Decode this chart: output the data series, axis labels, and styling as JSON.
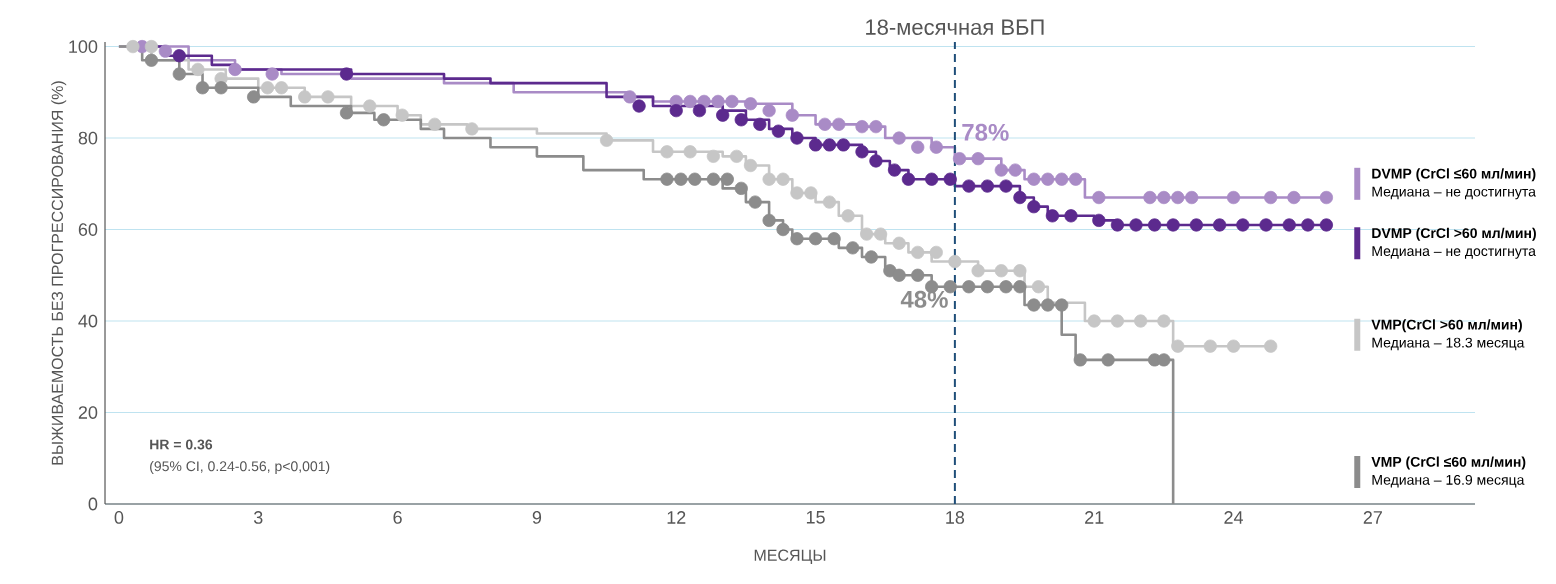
{
  "chart_data": {
    "type": "step",
    "xlabel": "МЕСЯЦЫ",
    "ylabel": "ВЫЖИВАЕМОСТЬ БЕЗ ПРОГРЕССИРОВАНИЯ (%)",
    "xlim": [
      -0.3,
      29.2
    ],
    "ylim": [
      0,
      101
    ],
    "xticks": [
      0,
      3,
      6,
      9,
      12,
      15,
      18,
      21,
      24,
      27
    ],
    "yticks": [
      0,
      20,
      40,
      60,
      80,
      100
    ],
    "grid": "y",
    "legend": "right",
    "series": [
      {
        "name": "DVMP (CrCl ≤60 мл/мин)",
        "color": "#a98bc6",
        "x": [
          0,
          1.5,
          2.5,
          3.5,
          5,
          7,
          8.5,
          11,
          11.5,
          13.5,
          14.5,
          15,
          16,
          16.5,
          17.5,
          18,
          19,
          19.5,
          20.8,
          26
        ],
        "values": [
          100,
          97,
          95,
          94,
          93,
          92,
          90,
          89,
          88,
          87.5,
          85,
          83,
          82.5,
          80,
          78,
          75.5,
          73,
          71,
          67,
          67
        ]
      },
      {
        "name": "DVMP (CrCl >60 мл/мин)",
        "color": "#5c2a8e",
        "x": [
          0,
          1,
          2,
          2.5,
          5,
          7,
          8,
          10.5,
          11.5,
          13,
          13.5,
          14,
          14.5,
          15,
          16,
          16.3,
          16.6,
          17,
          18,
          19.4,
          19.7,
          20,
          21,
          21.5,
          26
        ],
        "values": [
          100,
          98,
          96,
          95,
          94,
          93,
          92,
          89,
          87,
          86,
          84,
          82,
          80,
          78.5,
          77,
          75,
          73,
          71,
          69.5,
          67,
          65,
          63,
          62,
          61,
          61
        ]
      },
      {
        "name": "VMP(CrCl >60 мл/мин)",
        "color": "#c6c6c6",
        "x": [
          0,
          0.7,
          1.5,
          2.3,
          3,
          4,
          5,
          6,
          6.5,
          7.5,
          9,
          10.5,
          11.5,
          13,
          13.5,
          14,
          14.5,
          15,
          15.5,
          16,
          16.5,
          17,
          17.5,
          18.5,
          19.5,
          20,
          20.8,
          22.7,
          24.8
        ],
        "values": [
          100,
          97,
          95,
          93,
          91,
          89,
          87,
          85,
          83,
          82,
          81,
          79.5,
          77,
          76,
          74,
          71,
          68,
          66,
          63,
          59,
          57,
          55,
          53,
          51,
          47.5,
          44,
          40,
          34.5,
          34.5
        ]
      },
      {
        "name": "VMP (CrCl ≤60 мл/мин)",
        "color": "#8c8c8c",
        "x": [
          0,
          0.5,
          1.3,
          1.8,
          3,
          3.7,
          5,
          5.5,
          6.5,
          7,
          8,
          9,
          10,
          11.3,
          13,
          13.5,
          14,
          14.3,
          14.5,
          15.5,
          16,
          16.5,
          16.8,
          17.5,
          19.5,
          20.3,
          20.6,
          22.7
        ],
        "values": [
          100,
          97,
          94,
          91,
          89,
          87,
          85.5,
          84,
          82,
          80,
          78,
          76,
          73,
          71,
          69,
          66,
          62,
          60,
          58,
          56,
          54,
          51,
          50,
          47.5,
          43.5,
          37,
          31.5,
          0
        ]
      },
      {
        "type": "scatter",
        "color": "#a98bc6",
        "x": [
          0.5,
          1,
          2.5,
          3.3,
          11,
          12,
          12.3,
          12.6,
          12.9,
          13.2,
          13.6,
          14,
          14.5,
          15.2,
          15.5,
          16,
          16.3,
          16.8,
          17.2,
          17.6,
          18.1,
          18.5,
          19,
          19.3,
          19.7,
          20,
          20.3,
          20.6,
          21.1,
          22.2,
          22.5,
          22.8,
          23.1,
          24,
          24.8,
          25.3,
          26
        ],
        "values": [
          100,
          99,
          95,
          94,
          89,
          88,
          88,
          88,
          88,
          88,
          87.5,
          86,
          85,
          83,
          83,
          82.5,
          82.5,
          80,
          78,
          78,
          75.5,
          75.5,
          73,
          73,
          71,
          71,
          71,
          71,
          67,
          67,
          67,
          67,
          67,
          67,
          67,
          67,
          67
        ]
      },
      {
        "type": "scatter",
        "color": "#5c2a8e",
        "x": [
          1.3,
          4.9,
          11.2,
          12,
          12.5,
          13,
          13.4,
          13.8,
          14.2,
          14.6,
          15,
          15.3,
          15.6,
          16,
          16.3,
          16.7,
          17,
          17.5,
          17.9,
          18.3,
          18.7,
          19.1,
          19.4,
          19.7,
          20.1,
          20.5,
          21.1,
          21.5,
          21.9,
          22.3,
          22.7,
          23.2,
          23.7,
          24.2,
          24.7,
          25.2,
          25.6,
          26
        ],
        "values": [
          98,
          94,
          87,
          86,
          86,
          85,
          84,
          83,
          81.5,
          80,
          78.5,
          78.5,
          78.5,
          77,
          75,
          73,
          71,
          71,
          71,
          69.5,
          69.5,
          69.5,
          67,
          65,
          63,
          63,
          62,
          61,
          61,
          61,
          61,
          61,
          61,
          61,
          61,
          61,
          61,
          61
        ]
      },
      {
        "type": "scatter",
        "color": "#c6c6c6",
        "x": [
          0.3,
          0.7,
          1.7,
          2.2,
          3.2,
          3.5,
          4,
          4.5,
          5.4,
          6.1,
          6.8,
          7.6,
          10.5,
          11.8,
          12.3,
          12.8,
          13.3,
          13.6,
          14,
          14.3,
          14.6,
          14.9,
          15.3,
          15.7,
          16.1,
          16.4,
          16.8,
          17.2,
          17.6,
          18,
          18.5,
          19,
          19.4,
          19.8,
          20.2,
          21,
          21.5,
          22,
          22.5,
          22.8,
          23.5,
          24,
          24.8
        ],
        "values": [
          100,
          100,
          95,
          93,
          91,
          91,
          89,
          89,
          87,
          85,
          83,
          82,
          79.5,
          77,
          77,
          76,
          76,
          74,
          71,
          71,
          68,
          68,
          66,
          63,
          59,
          59,
          57,
          55,
          55,
          53,
          51,
          51,
          51,
          47.5,
          null,
          40,
          40,
          40,
          40,
          34.5,
          34.5,
          34.5,
          34.5
        ]
      },
      {
        "type": "scatter",
        "color": "#8c8c8c",
        "x": [
          0.7,
          1.3,
          1.8,
          2.2,
          2.9,
          4.9,
          5.7,
          11.8,
          12.1,
          12.4,
          12.8,
          13.1,
          13.4,
          13.7,
          14,
          14.3,
          14.6,
          15,
          15.4,
          15.8,
          16.2,
          16.6,
          16.8,
          17.2,
          17.5,
          17.9,
          18.3,
          18.7,
          19.1,
          19.4,
          19.7,
          20,
          20.3,
          20.7,
          21.3,
          22.3,
          22.5
        ],
        "values": [
          97,
          94,
          91,
          91,
          89,
          85.5,
          84,
          71,
          71,
          71,
          71,
          71,
          69,
          66,
          62,
          60,
          58,
          58,
          58,
          56,
          54,
          51,
          50,
          50,
          47.5,
          47.5,
          47.5,
          47.5,
          47.5,
          47.5,
          43.5,
          43.5,
          43.5,
          31.5,
          31.5,
          31.5,
          31.5
        ]
      }
    ],
    "ref_lines": [
      {
        "axis": "x",
        "value": 18,
        "label": "18-месячная ВБП",
        "color": "#1f4e79",
        "line_style": "dashed"
      }
    ],
    "annotations": [
      "Медиана – не достигнута",
      "Медиана – не достигнута",
      "Медиана – 18.3 месяца",
      "Медиана – 16.9 месяца",
      "HR = 0.36",
      "(95% CI, 0.24-0.56, p<0,001)",
      {
        "text": "78%",
        "x": 18,
        "y": 78
      },
      {
        "text": "48%",
        "x": 18,
        "y": 48
      }
    ]
  }
}
